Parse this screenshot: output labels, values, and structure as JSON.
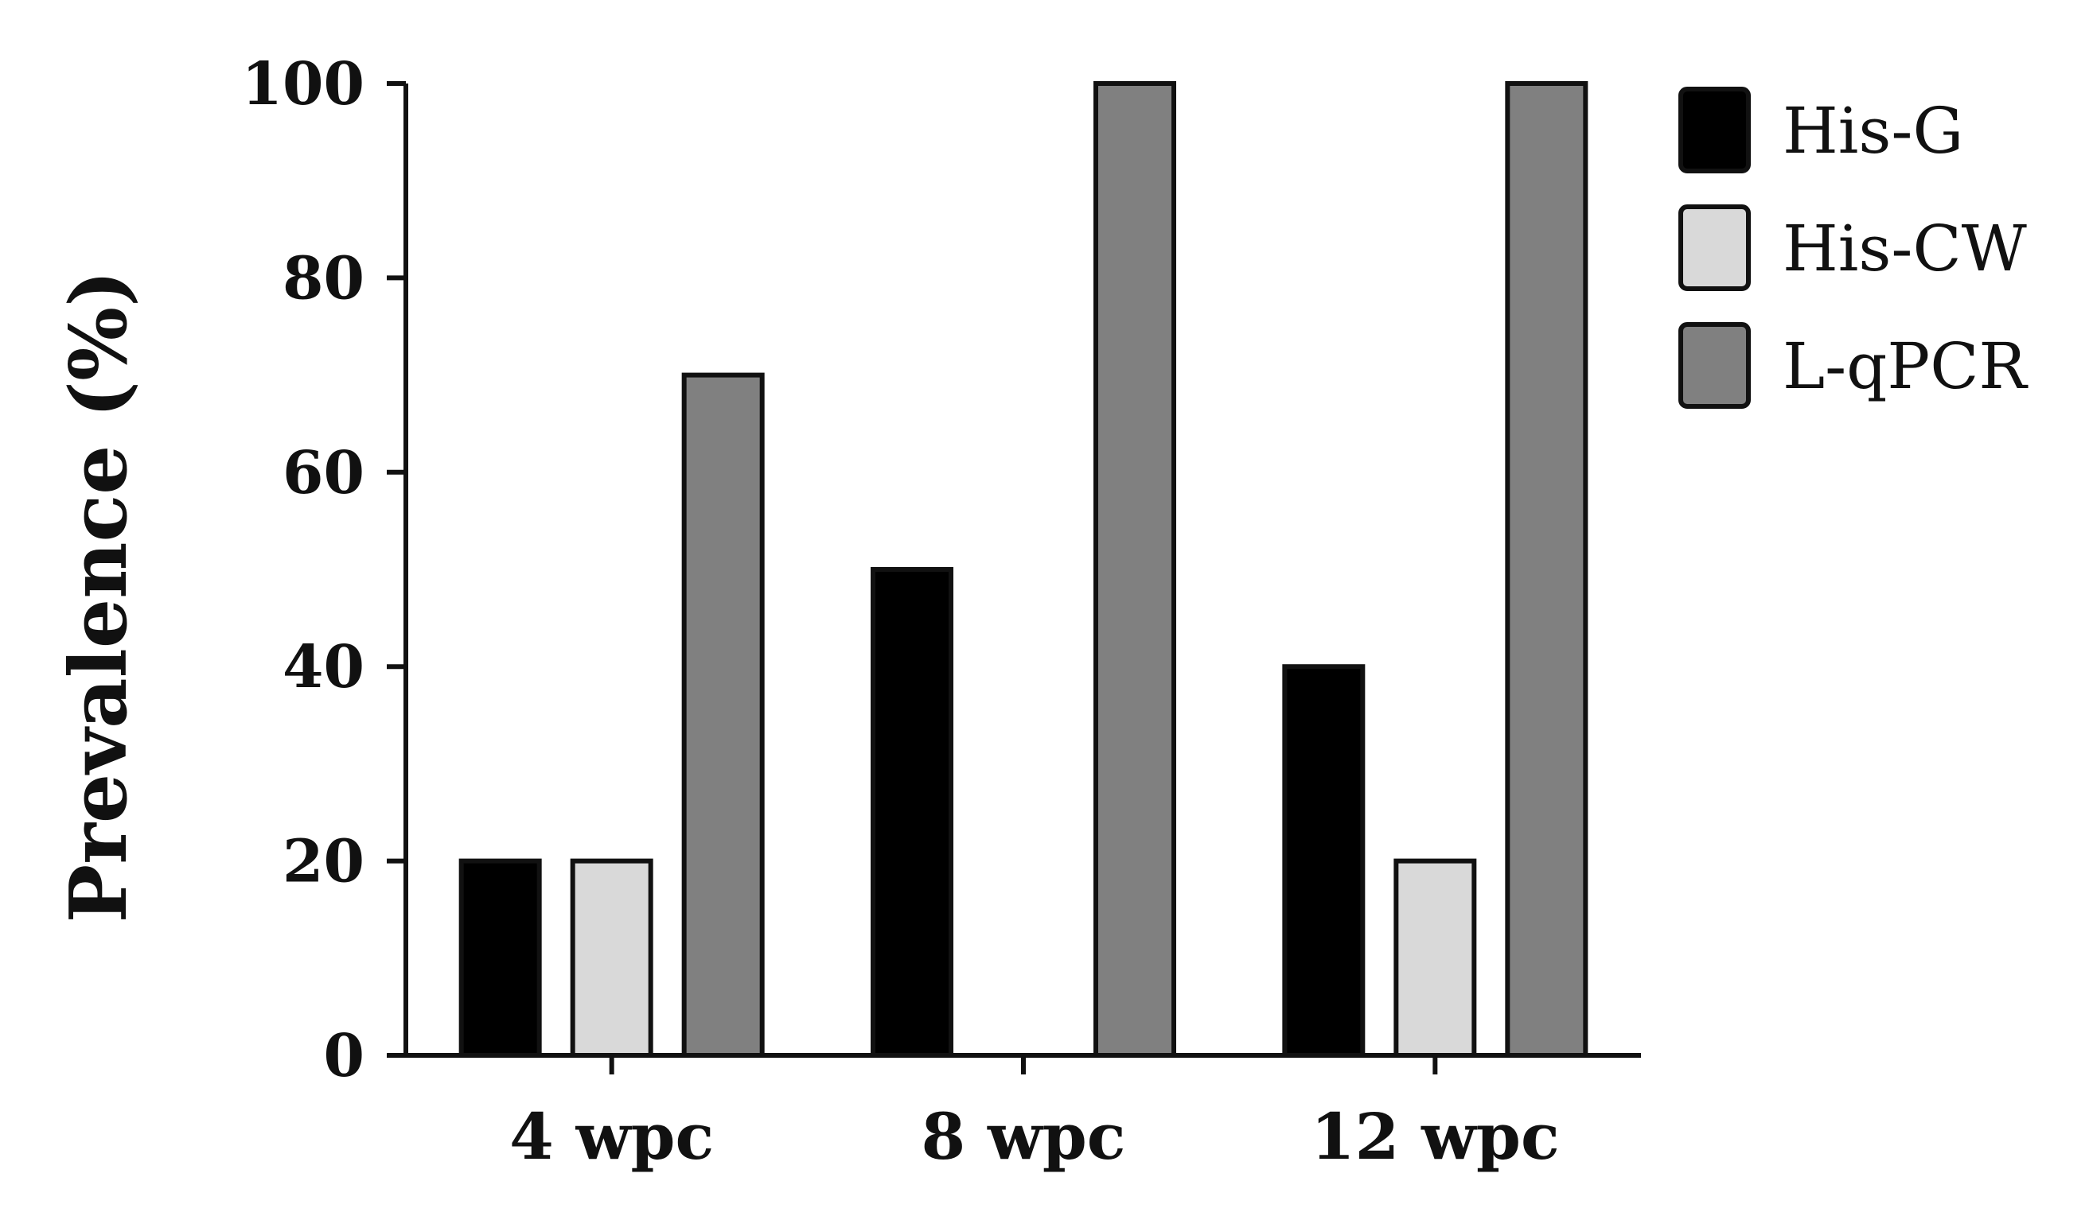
{
  "chart_data": {
    "type": "bar",
    "title": "",
    "xlabel": "",
    "ylabel": "Prevalence (%)",
    "categories": [
      "4 wpc",
      "8 wpc",
      "12 wpc"
    ],
    "ylim": [
      0,
      100
    ],
    "yticks": [
      "0",
      "20",
      "40",
      "60",
      "80",
      "100"
    ],
    "grid": false,
    "legend_position": "right",
    "series": [
      {
        "name": "His-G",
        "values": [
          20,
          50,
          40
        ],
        "color": "#000000"
      },
      {
        "name": "His-CW",
        "values": [
          20,
          0,
          20
        ],
        "color": "#d9d9d9"
      },
      {
        "name": "L-qPCR",
        "values": [
          70,
          100,
          100
        ],
        "color": "#808080"
      }
    ]
  }
}
